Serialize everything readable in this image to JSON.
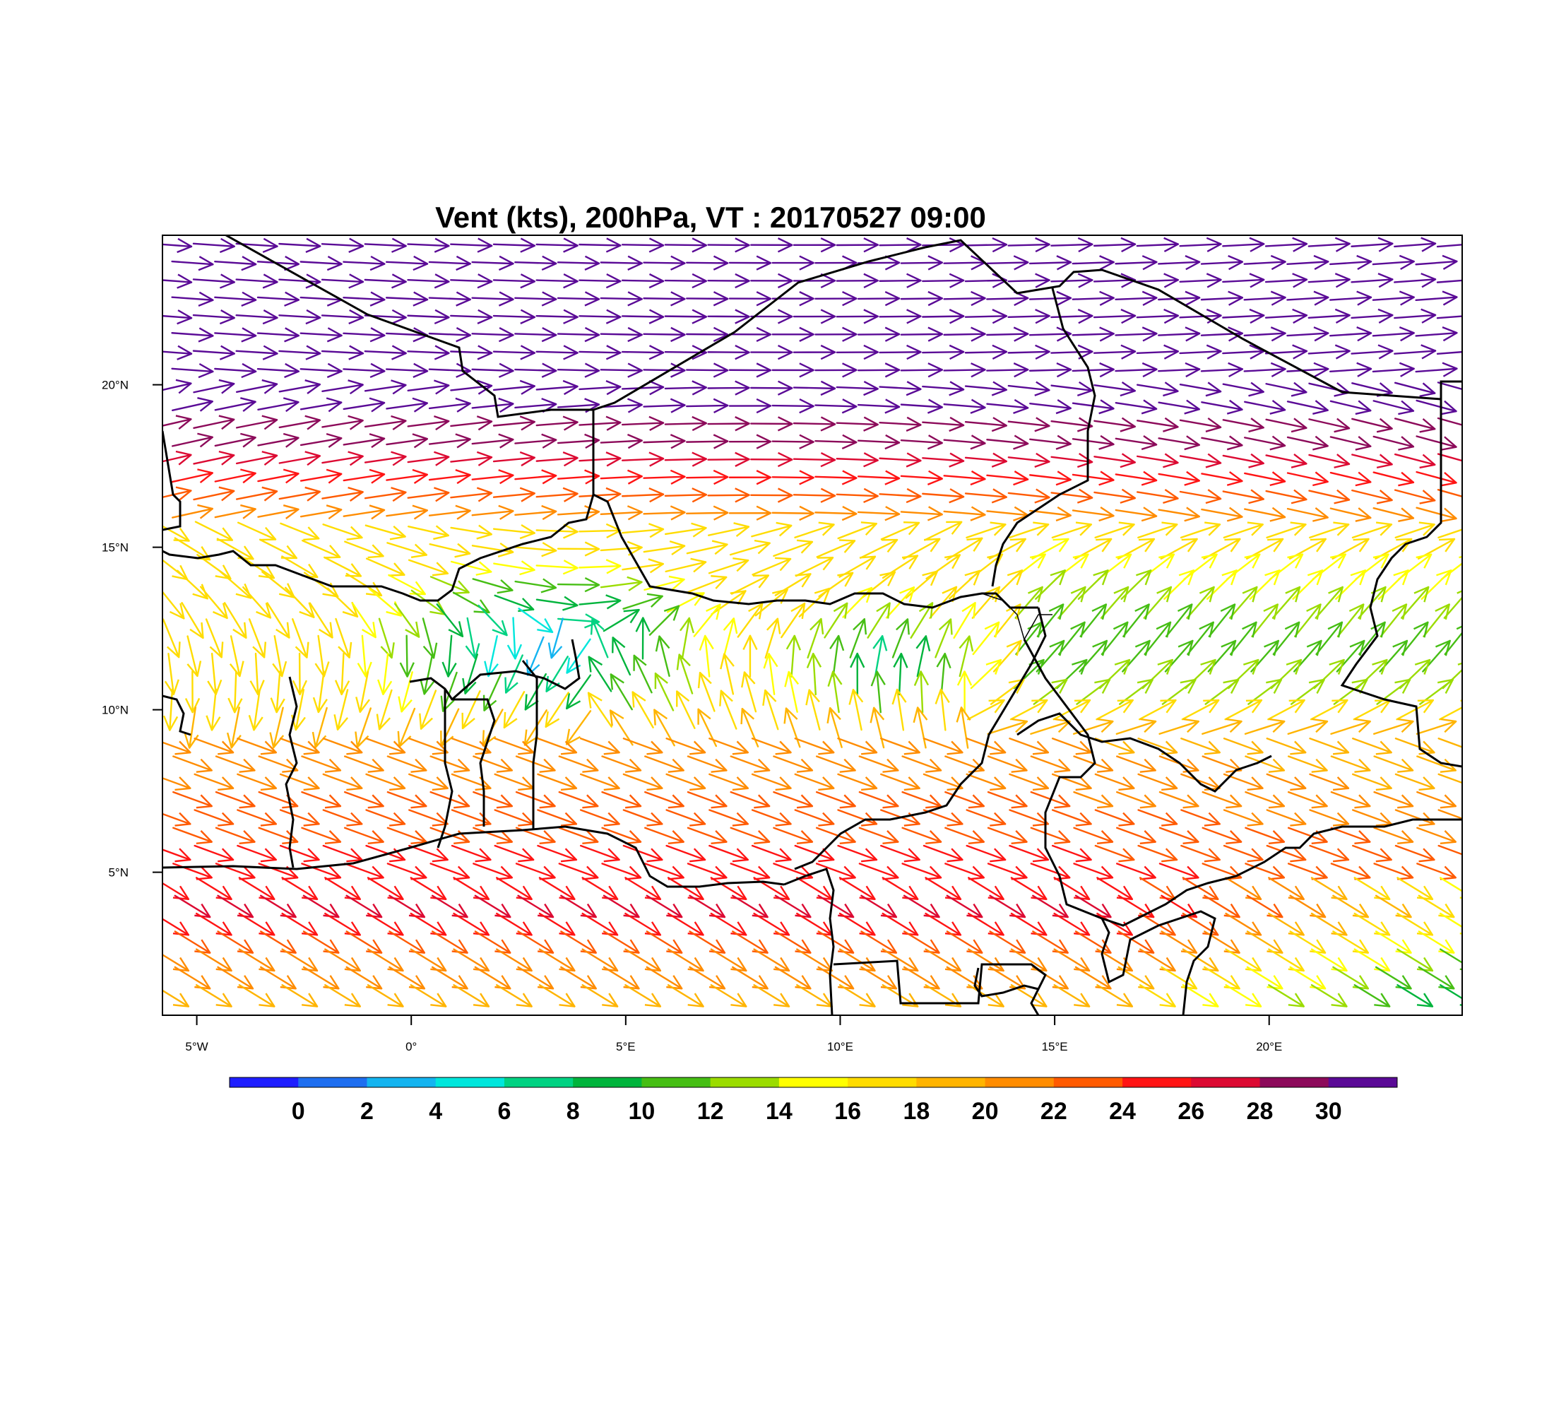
{
  "title": "Vent (kts), 200hPa, VT : 20170527  09:00",
  "map": {
    "lon_range": [
      -5.8,
      24.5
    ],
    "lat_range": [
      0.6,
      24.6
    ],
    "x_ticks": [
      {
        "lon": -5,
        "label": "5°W"
      },
      {
        "lon": 0,
        "label": "0°"
      },
      {
        "lon": 5,
        "label": "5°E"
      },
      {
        "lon": 10,
        "label": "10°E"
      },
      {
        "lon": 15,
        "label": "15°E"
      },
      {
        "lon": 20,
        "label": "20°E"
      }
    ],
    "y_ticks": [
      {
        "lat": 20,
        "label": "20°N"
      },
      {
        "lat": 15,
        "label": "15°N"
      },
      {
        "lat": 10,
        "label": "10°N"
      },
      {
        "lat": 5,
        "label": "5°N"
      }
    ]
  },
  "colorbar": {
    "colors": [
      "#1e1eff",
      "#1e6ef0",
      "#14b4f0",
      "#00e6dc",
      "#00d282",
      "#00b43c",
      "#46be14",
      "#9bdc00",
      "#ffff00",
      "#ffdc00",
      "#ffb400",
      "#ff8c00",
      "#ff5a00",
      "#ff1414",
      "#dc0a32",
      "#8c0a5a",
      "#5a0a96"
    ],
    "labels": [
      "0",
      "2",
      "4",
      "6",
      "8",
      "10",
      "12",
      "14",
      "16",
      "18",
      "20",
      "22",
      "24",
      "26",
      "28",
      "30"
    ]
  },
  "wind_field": {
    "units": "kts",
    "jet_north": {
      "speed": 31,
      "axis_lat": 22
    },
    "jet_core": {
      "speed": 29,
      "lat": 18.5
    },
    "low_speed_region": {
      "lon": 3,
      "lat": 12,
      "speed": 2
    },
    "secondary_min": {
      "lon": 11,
      "lat": 11.5,
      "speed": 6
    },
    "southern_jet": {
      "speed": 27,
      "lat": 4
    }
  }
}
